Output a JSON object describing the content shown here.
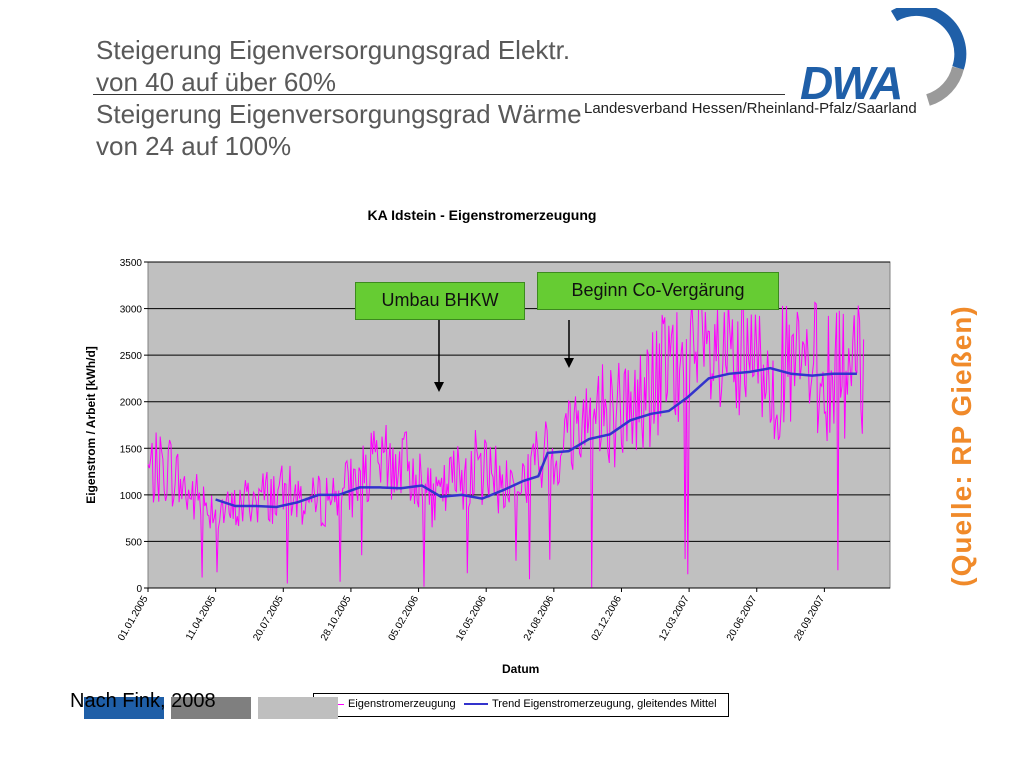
{
  "slide": {
    "title_lines": [
      "Steigerung Eigenversorgungsgrad Elektr.",
      "von 40 auf über 60%",
      "Steigerung Eigenversorgungsgrad Wärme",
      "von 24 auf 100%"
    ],
    "subtitle": "Landesverband Hessen/Rheinland-Pfalz/Saarland",
    "logo_text": "DWA",
    "credit": "Nach Fink, 2008",
    "source_note": "(Quelle: RP Gießen)",
    "colors": {
      "accent_green": "#66cc33",
      "source_orange": "#f08a2a",
      "bar_blue": "#1f5fa8",
      "bar_gray": "#7f7f7f",
      "bar_light": "#bfbfbf"
    }
  },
  "annotations": {
    "umbau": "Umbau BHKW",
    "covergaerung": "Beginn Co-Vergärung"
  },
  "chart_data": {
    "type": "line",
    "title": "KA Idstein - Eigenstromerzeugung",
    "xlabel": "Datum",
    "ylabel": "Eigenstrom / Arbeit [kWh/d]",
    "ylim": [
      0,
      3500
    ],
    "yticks": [
      0,
      500,
      1000,
      1500,
      2000,
      2500,
      3000,
      3500
    ],
    "xlim": [
      "2005-01-01",
      "2008-01-03"
    ],
    "xtick_labels": [
      "01.01.2005",
      "11.04.2005",
      "20.07.2005",
      "28.10.2005",
      "05.02.2006",
      "16.05.2006",
      "24.08.2006",
      "02.12.2006",
      "12.03.2007",
      "20.06.2007",
      "28.09.2007"
    ],
    "xtick_dates": [
      "2005-01-01",
      "2005-04-11",
      "2005-07-20",
      "2005-10-28",
      "2006-02-05",
      "2006-05-16",
      "2006-08-24",
      "2006-12-02",
      "2007-03-12",
      "2007-06-20",
      "2007-09-28"
    ],
    "grid": true,
    "legend_position": "bottom",
    "series": [
      {
        "name": "Eigenstromerzeugung",
        "color": "#ff00ff",
        "style": "noisy",
        "x": [
          "2005-01-01",
          "2005-02-01",
          "2005-03-01",
          "2005-04-01",
          "2005-05-01",
          "2005-06-01",
          "2005-07-01",
          "2005-08-01",
          "2005-09-01",
          "2005-10-01",
          "2005-11-01",
          "2005-12-01",
          "2006-01-01",
          "2006-02-01",
          "2006-03-01",
          "2006-04-01",
          "2006-05-01",
          "2006-06-01",
          "2006-07-01",
          "2006-08-01",
          "2006-09-01",
          "2006-10-01",
          "2006-11-01",
          "2006-12-01",
          "2007-01-01",
          "2007-02-01",
          "2007-03-01",
          "2007-04-01",
          "2007-05-01",
          "2007-06-01",
          "2007-07-01",
          "2007-08-01",
          "2007-09-01",
          "2007-10-01",
          "2007-11-01"
        ],
        "y": [
          1250,
          1300,
          1000,
          900,
          800,
          950,
          1000,
          1000,
          900,
          1000,
          1100,
          1300,
          1350,
          1250,
          900,
          1200,
          1300,
          1150,
          1100,
          1350,
          1500,
          1800,
          1900,
          1900,
          2000,
          2300,
          2350,
          2450,
          2350,
          2350,
          2350,
          2300,
          2350,
          2300,
          2300
        ]
      },
      {
        "name": "Trend Eigenstromerzeugung, gleitendes Mittel",
        "color": "#3333cc",
        "x": [
          "2005-04-11",
          "2005-05-10",
          "2005-06-10",
          "2005-07-10",
          "2005-08-10",
          "2005-09-10",
          "2005-10-10",
          "2005-11-10",
          "2005-12-10",
          "2006-01-10",
          "2006-02-10",
          "2006-03-10",
          "2006-04-10",
          "2006-05-10",
          "2006-06-10",
          "2006-07-10",
          "2006-08-01",
          "2006-08-15",
          "2006-09-15",
          "2006-10-15",
          "2006-11-15",
          "2006-12-15",
          "2007-01-15",
          "2007-02-10",
          "2007-03-10",
          "2007-04-10",
          "2007-05-10",
          "2007-06-10",
          "2007-07-10",
          "2007-08-10",
          "2007-09-10",
          "2007-10-10",
          "2007-11-15"
        ],
        "y": [
          950,
          880,
          880,
          870,
          920,
          1000,
          1000,
          1080,
          1080,
          1070,
          1100,
          980,
          1000,
          960,
          1050,
          1150,
          1200,
          1450,
          1470,
          1600,
          1650,
          1800,
          1870,
          1900,
          2050,
          2250,
          2300,
          2320,
          2360,
          2300,
          2280,
          2300,
          2300
        ]
      }
    ]
  }
}
